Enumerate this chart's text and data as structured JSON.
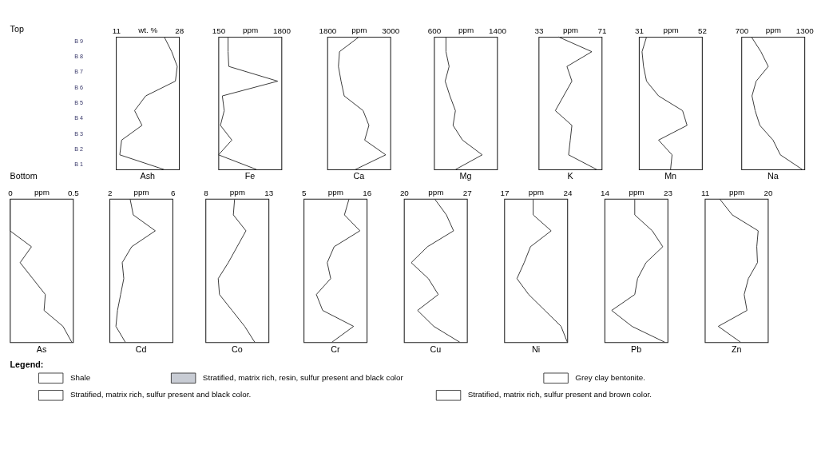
{
  "chart_data": [
    {
      "type": "other",
      "title": "Top",
      "categories": [
        "B 9",
        "B 8",
        "B 7",
        "B 6",
        "B 5",
        "B 4",
        "B 3",
        "B 2",
        "B 1"
      ],
      "annotations": [
        "Bottom"
      ]
    },
    {
      "type": "line",
      "orientation": "horizontal",
      "title": "Ash",
      "xlabel": "wt. %",
      "xlim": [
        11,
        28
      ],
      "xticks": [
        11,
        28
      ],
      "categories": [
        null,
        null,
        null,
        null,
        null,
        null,
        null,
        null,
        null,
        null
      ],
      "marker": "none",
      "line_style": "solid",
      "grid": false,
      "tick_labels": "x",
      "series": [
        {
          "color": "#3a3a3a",
          "values": [
            24,
            26,
            27.5,
            27,
            19,
            16,
            18,
            12.5,
            12,
            24
          ]
        }
      ]
    },
    {
      "type": "line",
      "orientation": "horizontal",
      "title": "Fe",
      "xlabel": "ppm",
      "xlim": [
        150,
        1800
      ],
      "xticks": [
        150,
        1800
      ],
      "categories": [
        null,
        null,
        null,
        null,
        null,
        null,
        null,
        null,
        null,
        null
      ],
      "marker": "none",
      "line_style": "solid",
      "grid": false,
      "tick_labels": "x",
      "series": [
        {
          "color": "#3a3a3a",
          "values": [
            400,
            400,
            420,
            1700,
            250,
            300,
            200,
            500,
            150,
            1150
          ]
        }
      ]
    },
    {
      "type": "line",
      "orientation": "horizontal",
      "title": "Ca",
      "xlabel": "ppm",
      "xlim": [
        1800,
        3000
      ],
      "xticks": [
        1800,
        3000
      ],
      "categories": [
        null,
        null,
        null,
        null,
        null,
        null,
        null,
        null,
        null,
        null
      ],
      "marker": "none",
      "line_style": "solid",
      "grid": false,
      "tick_labels": "x",
      "series": [
        {
          "color": "#3a3a3a",
          "values": [
            2400,
            2030,
            2010,
            2060,
            2120,
            2480,
            2590,
            2510,
            2910,
            2330
          ]
        }
      ]
    },
    {
      "type": "line",
      "orientation": "horizontal",
      "title": "Mg",
      "xlabel": "ppm",
      "xlim": [
        600,
        1400
      ],
      "xticks": [
        600,
        1400
      ],
      "categories": [
        null,
        null,
        null,
        null,
        null,
        null,
        null,
        null,
        null,
        null
      ],
      "marker": "none",
      "line_style": "solid",
      "grid": false,
      "tick_labels": "x",
      "series": [
        {
          "color": "#3a3a3a",
          "values": [
            750,
            750,
            790,
            740,
            800,
            870,
            840,
            960,
            1210,
            870
          ]
        }
      ]
    },
    {
      "type": "line",
      "orientation": "horizontal",
      "title": "K",
      "xlabel": "ppm",
      "xlim": [
        33,
        71
      ],
      "xticks": [
        33,
        71
      ],
      "categories": [
        null,
        null,
        null,
        null,
        null,
        null,
        null,
        null,
        null,
        null
      ],
      "marker": "none",
      "line_style": "solid",
      "grid": false,
      "tick_labels": "x",
      "series": [
        {
          "color": "#3a3a3a",
          "values": [
            45,
            65,
            50,
            53,
            48,
            43,
            53,
            52,
            51,
            68
          ]
        }
      ]
    },
    {
      "type": "line",
      "orientation": "horizontal",
      "title": "Mn",
      "xlabel": "ppm",
      "xlim": [
        31,
        52
      ],
      "xticks": [
        31,
        52
      ],
      "categories": [
        null,
        null,
        null,
        null,
        null,
        null,
        null,
        null,
        null,
        null
      ],
      "marker": "none",
      "line_style": "solid",
      "grid": false,
      "tick_labels": "x",
      "series": [
        {
          "color": "#3a3a3a",
          "values": [
            33.5,
            32,
            32.5,
            33.5,
            37.5,
            45.5,
            47,
            37.5,
            42,
            41.5
          ]
        }
      ]
    },
    {
      "type": "line",
      "orientation": "horizontal",
      "title": "Na",
      "xlabel": "ppm",
      "xlim": [
        700,
        1300
      ],
      "xticks": [
        700,
        1300
      ],
      "categories": [
        null,
        null,
        null,
        null,
        null,
        null,
        null,
        null,
        null,
        null
      ],
      "marker": "none",
      "line_style": "solid",
      "grid": false,
      "tick_labels": "x",
      "series": [
        {
          "color": "#3a3a3a",
          "values": [
            795,
            885,
            955,
            840,
            800,
            830,
            875,
            1000,
            1070,
            1280
          ]
        }
      ]
    },
    {
      "type": "line",
      "orientation": "horizontal",
      "title": "As",
      "xlabel": "ppm",
      "xlim": [
        0,
        0.5
      ],
      "xticks": [
        0,
        0.5
      ],
      "categories": [
        null,
        null,
        null,
        null,
        null,
        null,
        null,
        null,
        null,
        null
      ],
      "marker": "none",
      "line_style": "solid",
      "grid": false,
      "tick_labels": "x",
      "series": [
        {
          "color": "#3a3a3a",
          "values": [
            0,
            0,
            0,
            0.17,
            0.08,
            0.18,
            0.28,
            0.27,
            0.42,
            0.49
          ]
        }
      ]
    },
    {
      "type": "line",
      "orientation": "horizontal",
      "title": "Cd",
      "xlabel": "ppm",
      "xlim": [
        2,
        6
      ],
      "xticks": [
        2,
        6
      ],
      "categories": [
        null,
        null,
        null,
        null,
        null,
        null,
        null,
        null,
        null,
        null
      ],
      "marker": "none",
      "line_style": "solid",
      "grid": false,
      "tick_labels": "x",
      "series": [
        {
          "color": "#3a3a3a",
          "values": [
            3.3,
            3.5,
            4.9,
            3.4,
            2.8,
            2.9,
            2.7,
            2.5,
            2.4,
            3.0
          ]
        }
      ]
    },
    {
      "type": "line",
      "orientation": "horizontal",
      "title": "Co",
      "xlabel": "ppm",
      "xlim": [
        8,
        13
      ],
      "xticks": [
        8,
        13
      ],
      "categories": [
        null,
        null,
        null,
        null,
        null,
        null,
        null,
        null,
        null,
        null
      ],
      "marker": "none",
      "line_style": "solid",
      "grid": false,
      "tick_labels": "x",
      "series": [
        {
          "color": "#3a3a3a",
          "values": [
            10.3,
            10.2,
            11.2,
            10.5,
            9.8,
            9.0,
            9.1,
            10.1,
            11.1,
            11.9
          ]
        }
      ]
    },
    {
      "type": "line",
      "orientation": "horizontal",
      "title": "Cr",
      "xlabel": "ppm",
      "xlim": [
        5,
        16
      ],
      "xticks": [
        5,
        16
      ],
      "categories": [
        null,
        null,
        null,
        null,
        null,
        null,
        null,
        null,
        null,
        null
      ],
      "marker": "none",
      "line_style": "solid",
      "grid": false,
      "tick_labels": "x",
      "series": [
        {
          "color": "#3a3a3a",
          "values": [
            12.9,
            12.1,
            14.8,
            10.3,
            9.1,
            9.7,
            7.2,
            8.3,
            13.7,
            9.9
          ]
        }
      ]
    },
    {
      "type": "line",
      "orientation": "horizontal",
      "title": "Cu",
      "xlabel": "ppm",
      "xlim": [
        20,
        27
      ],
      "xticks": [
        20,
        27
      ],
      "categories": [
        null,
        null,
        null,
        null,
        null,
        null,
        null,
        null,
        null,
        null
      ],
      "marker": "none",
      "line_style": "solid",
      "grid": false,
      "tick_labels": "x",
      "series": [
        {
          "color": "#3a3a3a",
          "values": [
            23.4,
            24.7,
            25.5,
            22.6,
            20.8,
            22.7,
            23.8,
            21.5,
            23.3,
            26.2
          ]
        }
      ]
    },
    {
      "type": "line",
      "orientation": "horizontal",
      "title": "Ni",
      "xlabel": "ppm",
      "xlim": [
        17,
        24
      ],
      "xticks": [
        17,
        24
      ],
      "categories": [
        null,
        null,
        null,
        null,
        null,
        null,
        null,
        null,
        null,
        null
      ],
      "marker": "none",
      "line_style": "solid",
      "grid": false,
      "tick_labels": "x",
      "series": [
        {
          "color": "#3a3a3a",
          "values": [
            20.2,
            20.2,
            22.2,
            19.9,
            19.2,
            18.4,
            19.7,
            21.5,
            23.3,
            24
          ]
        }
      ]
    },
    {
      "type": "line",
      "orientation": "horizontal",
      "title": "Pb",
      "xlabel": "ppm",
      "xlim": [
        14,
        23
      ],
      "xticks": [
        14,
        23
      ],
      "categories": [
        null,
        null,
        null,
        null,
        null,
        null,
        null,
        null,
        null,
        null
      ],
      "marker": "none",
      "line_style": "solid",
      "grid": false,
      "tick_labels": "x",
      "series": [
        {
          "color": "#3a3a3a",
          "values": [
            18.3,
            18.3,
            20.8,
            22.3,
            19.9,
            18.7,
            18.3,
            15.0,
            17.9,
            22.6
          ]
        }
      ]
    },
    {
      "type": "line",
      "orientation": "horizontal",
      "title": "Zn",
      "xlabel": "ppm",
      "xlim": [
        11,
        20
      ],
      "xticks": [
        11,
        20
      ],
      "categories": [
        null,
        null,
        null,
        null,
        null,
        null,
        null,
        null,
        null,
        null
      ],
      "marker": "none",
      "line_style": "solid",
      "grid": false,
      "tick_labels": "x",
      "series": [
        {
          "color": "#3a3a3a",
          "values": [
            13.1,
            14.9,
            18.6,
            18.4,
            18.5,
            17.2,
            16.6,
            17.0,
            12.9,
            16.1
          ]
        }
      ]
    },
    {
      "type": "other",
      "title": "Legend:",
      "categories": [
        "Shale",
        "Stratified, matrix rich, resin, sulfur present and black color",
        "Grey clay bentonite.",
        "Stratified, matrix rich, sulfur present and black color.",
        "Stratified, matrix rich, sulfur present and brown color."
      ],
      "colors": [
        "#ffffff",
        "#c8ccd4",
        "#ffffff",
        "#ffffff",
        "#ffffff"
      ]
    }
  ]
}
